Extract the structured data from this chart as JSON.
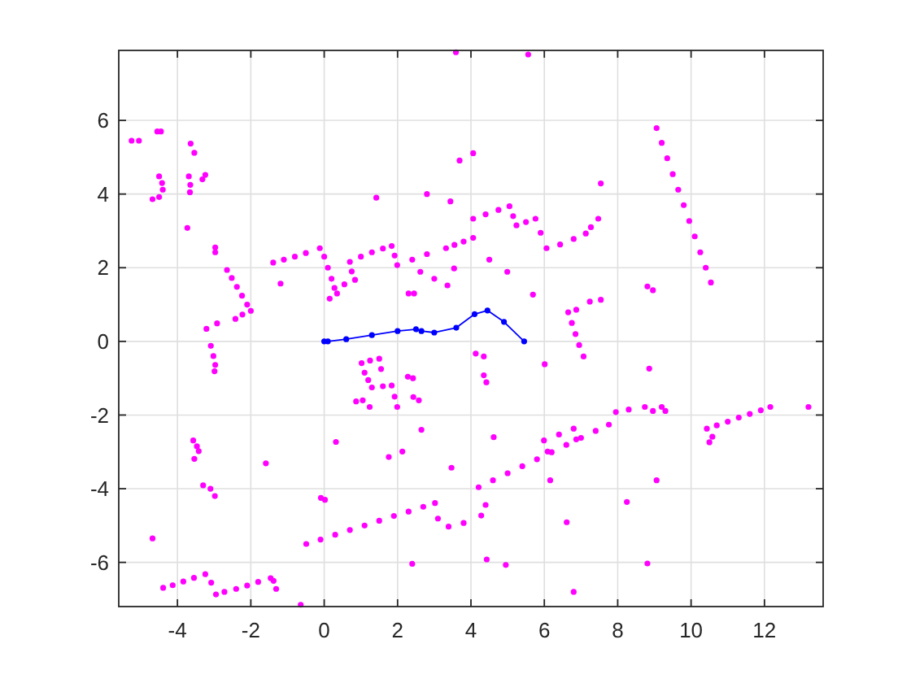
{
  "chart_data": {
    "type": "scatter",
    "xlim": [
      -5.6,
      13.6
    ],
    "ylim": [
      -7.2,
      7.9
    ],
    "xticks": [
      -4,
      -2,
      0,
      2,
      4,
      6,
      8,
      10,
      12
    ],
    "yticks": [
      -6,
      -4,
      -2,
      0,
      2,
      4,
      6
    ],
    "grid": true,
    "marker": "circle",
    "series": [
      {
        "color": "#ff00ff",
        "x": [
          -5.25,
          -5.05,
          -4.55,
          -4.45,
          -4.5,
          -4.42,
          -4.4,
          -4.5,
          -4.68,
          -3.64,
          -3.54,
          -3.69,
          -3.65,
          -3.66,
          -3.32,
          -3.24,
          -3.73,
          -2.97,
          -2.97,
          -2.65,
          -2.52,
          -2.38,
          -2.24,
          -2.1,
          -2.0,
          -2.23,
          -2.42,
          -2.92,
          -3.21,
          -1.19,
          -3.09,
          -3.02,
          -2.97,
          -2.99,
          -3.57,
          -3.47,
          -3.42,
          -3.54,
          -3.3,
          -3.1,
          -2.98,
          -1.59,
          0.32,
          -0.09,
          0.02,
          -4.68,
          -0.64,
          -4.39,
          -4.13,
          -3.84,
          -3.55,
          -3.24,
          -3.08,
          -2.95,
          -2.72,
          -2.4,
          -2.1,
          -1.8,
          -1.46,
          -1.38,
          -1.31,
          -1.39,
          -1.1,
          -0.8,
          -0.5,
          -0.12,
          0.0,
          0.1,
          0.2,
          0.28,
          0.55,
          0.84,
          0.75,
          0.7,
          1.0,
          1.3,
          1.6,
          1.84,
          1.92,
          1.99,
          2.4,
          2.8,
          2.62,
          3.0,
          3.36,
          3.54,
          0.15,
          0.35,
          2.3,
          2.45,
          3.32,
          3.55,
          3.8,
          4.06,
          4.06,
          4.4,
          4.75,
          5.05,
          5.15,
          5.24,
          5.5,
          5.76,
          5.9,
          6.06,
          6.43,
          6.8,
          7.13,
          4.5,
          4.99,
          5.69,
          7.54,
          7.47,
          7.27,
          3.59,
          5.56,
          4.06,
          3.69,
          1.42,
          2.8,
          3.44,
          6.65,
          6.87,
          6.75,
          6.85,
          6.95,
          7.07,
          7.24,
          7.54,
          8.81,
          8.96,
          9.06,
          9.2,
          9.35,
          9.5,
          9.65,
          9.8,
          9.95,
          10.1,
          10.25,
          10.4,
          10.54,
          1.02,
          1.25,
          1.5,
          1.55,
          1.1,
          1.2,
          1.3,
          1.6,
          1.84,
          1.92,
          1.99,
          0.87,
          1.05,
          1.24,
          2.28,
          2.42,
          2.43,
          2.58,
          4.13,
          4.35,
          4.35,
          4.42,
          6.01,
          2.65,
          2.13,
          1.76,
          3.47,
          4.62,
          8.25,
          6.61,
          4.43,
          4.95,
          2.4,
          6.8,
          8.81,
          -0.49,
          -0.1,
          0.3,
          0.7,
          1.1,
          1.5,
          1.9,
          2.3,
          2.7,
          3.02,
          3.1,
          3.39,
          3.8,
          4.28,
          4.4,
          4.21,
          4.6,
          5.0,
          5.4,
          5.8,
          6.2,
          6.6,
          7.0,
          7.4,
          7.76,
          7.95,
          8.3,
          8.74,
          8.96,
          9.2,
          9.3,
          8.86,
          9.06,
          5.99,
          6.4,
          6.8,
          6.09,
          6.87,
          6.16,
          10.43,
          10.7,
          11.0,
          11.3,
          11.6,
          11.9,
          12.16,
          10.5,
          10.58,
          13.2
        ],
        "values": [
          5.45,
          5.45,
          5.7,
          5.7,
          4.48,
          4.3,
          4.12,
          3.92,
          3.86,
          5.37,
          5.12,
          4.48,
          4.25,
          4.05,
          4.4,
          4.52,
          3.08,
          2.55,
          2.42,
          1.94,
          1.72,
          1.48,
          1.24,
          1.0,
          0.83,
          0.73,
          0.61,
          0.49,
          0.34,
          1.57,
          -0.12,
          -0.4,
          -0.64,
          -0.81,
          -2.69,
          -2.85,
          -2.98,
          -3.19,
          -3.91,
          -4.0,
          -4.2,
          -3.31,
          -2.73,
          -4.25,
          -4.3,
          -5.35,
          -7.15,
          -6.69,
          -6.62,
          -6.52,
          -6.42,
          -6.32,
          -6.55,
          -6.87,
          -6.8,
          -6.72,
          -6.63,
          -6.53,
          -6.43,
          -6.5,
          -6.72,
          2.14,
          2.22,
          2.3,
          2.4,
          2.53,
          2.3,
          2.0,
          1.7,
          1.45,
          1.55,
          1.67,
          1.9,
          2.16,
          2.3,
          2.42,
          2.52,
          2.59,
          2.33,
          2.07,
          2.22,
          2.37,
          1.89,
          1.7,
          1.52,
          1.98,
          1.16,
          1.3,
          1.3,
          1.3,
          2.53,
          2.62,
          2.71,
          2.81,
          3.33,
          3.45,
          3.57,
          3.67,
          3.4,
          3.15,
          3.24,
          3.33,
          2.95,
          2.53,
          2.63,
          2.78,
          2.93,
          2.22,
          1.89,
          1.27,
          4.29,
          3.33,
          3.1,
          7.85,
          7.79,
          5.11,
          4.91,
          3.9,
          4.0,
          3.8,
          0.79,
          0.86,
          0.5,
          0.2,
          -0.1,
          -0.41,
          1.08,
          1.13,
          1.49,
          1.39,
          5.79,
          5.39,
          4.97,
          4.54,
          4.12,
          3.7,
          3.27,
          2.85,
          2.42,
          2.0,
          1.6,
          -0.59,
          -0.52,
          -0.47,
          -0.75,
          -0.85,
          -1.05,
          -1.25,
          -1.22,
          -1.2,
          -1.5,
          -1.78,
          -1.63,
          -1.6,
          -1.78,
          -0.96,
          -1.0,
          -1.51,
          -1.6,
          -0.33,
          -0.41,
          -0.92,
          -1.11,
          -0.62,
          -2.4,
          -2.99,
          -3.14,
          -3.43,
          -2.6,
          -4.36,
          -4.91,
          -5.92,
          -6.07,
          -6.04,
          -6.8,
          -6.03,
          -5.5,
          -5.38,
          -5.25,
          -5.12,
          -5.0,
          -4.87,
          -4.74,
          -4.62,
          -4.49,
          -4.39,
          -4.81,
          -5.03,
          -4.93,
          -4.73,
          -4.44,
          -3.96,
          -3.77,
          -3.58,
          -3.39,
          -3.2,
          -3.01,
          -2.81,
          -2.62,
          -2.43,
          -2.26,
          -1.92,
          -1.85,
          -1.78,
          -1.89,
          -1.78,
          -1.89,
          -0.74,
          -3.77,
          -2.69,
          -2.53,
          -2.37,
          -2.99,
          -2.66,
          -3.77,
          -2.37,
          -2.28,
          -2.18,
          -2.07,
          -1.97,
          -1.87,
          -1.78,
          -2.74,
          -2.59,
          -1.78
        ]
      },
      {
        "type": "line",
        "color": "#0000ff",
        "x": [
          0,
          0.1,
          0.6,
          1.3,
          2.0,
          2.5,
          2.65,
          3.0,
          3.6,
          4.1,
          4.45,
          4.9,
          5.45
        ],
        "values": [
          0,
          0,
          0.06,
          0.17,
          0.28,
          0.33,
          0.28,
          0.24,
          0.37,
          0.74,
          0.84,
          0.53,
          0.0
        ]
      }
    ]
  }
}
